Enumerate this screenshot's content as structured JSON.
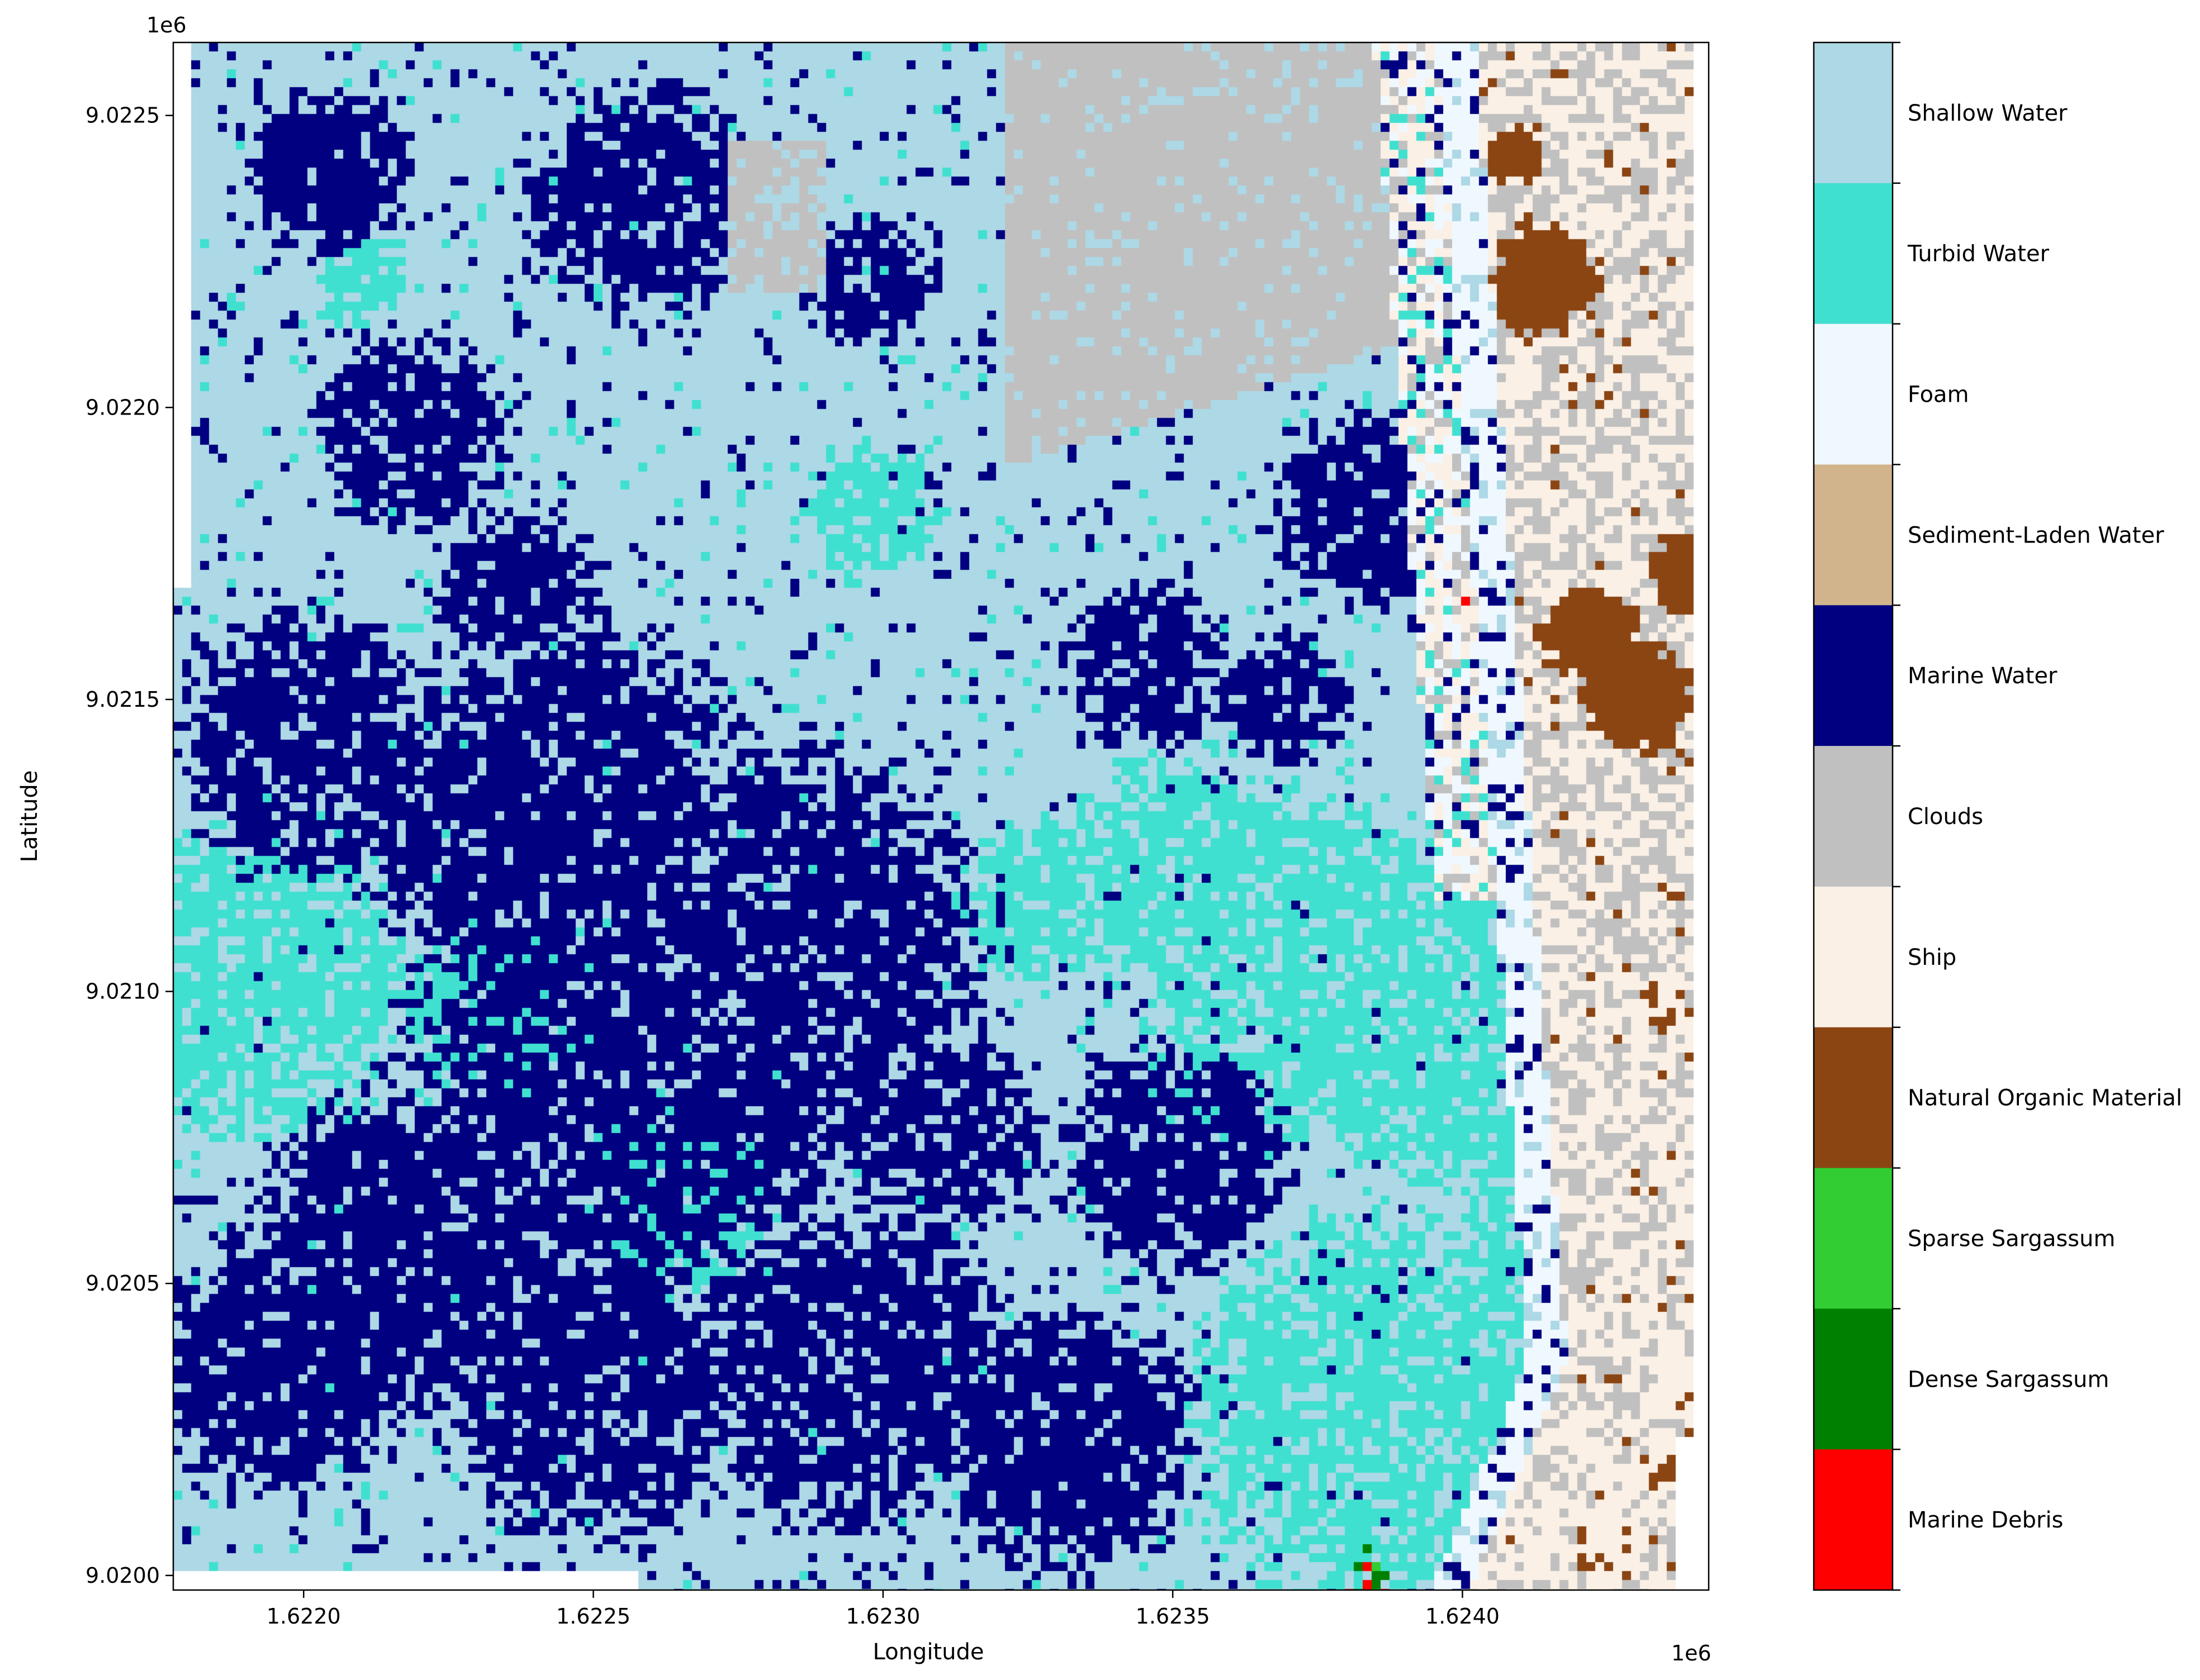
{
  "chart_data": {
    "type": "heatmap",
    "title": "",
    "xlabel": "Longitude",
    "ylabel": "Latitude",
    "x_offset_label": "1e6",
    "y_offset_label": "1e6",
    "xlim": [
      1.621775,
      1.624425
    ],
    "ylim": [
      9.019975,
      9.022625
    ],
    "x_ticks": [
      {
        "value": 1.622,
        "label": "1.6220"
      },
      {
        "value": 1.6225,
        "label": "1.6225"
      },
      {
        "value": 1.623,
        "label": "1.6230"
      },
      {
        "value": 1.6235,
        "label": "1.6235"
      },
      {
        "value": 1.624,
        "label": "1.6240"
      }
    ],
    "y_ticks": [
      {
        "value": 9.02,
        "label": "9.0200"
      },
      {
        "value": 9.0205,
        "label": "9.0205"
      },
      {
        "value": 9.021,
        "label": "9.0210"
      },
      {
        "value": 9.0215,
        "label": "9.0215"
      },
      {
        "value": 9.022,
        "label": "9.0220"
      },
      {
        "value": 9.0225,
        "label": "9.0225"
      }
    ],
    "classes": [
      {
        "name": "Shallow Water",
        "color": "#add8e6"
      },
      {
        "name": "Turbid Water",
        "color": "#40e0d0"
      },
      {
        "name": "Foam",
        "color": "#f0f8ff"
      },
      {
        "name": "Sediment-Laden Water",
        "color": "#d2b48c"
      },
      {
        "name": "Marine Water",
        "color": "#000080"
      },
      {
        "name": "Clouds",
        "color": "#c0c0c0"
      },
      {
        "name": "Ship",
        "color": "#faf0e6"
      },
      {
        "name": "Natural Organic Material",
        "color": "#8b4513"
      },
      {
        "name": "Sparse Sargassum",
        "color": "#32cd32"
      },
      {
        "name": "Dense Sargassum",
        "color": "#008000"
      },
      {
        "name": "Marine Debris",
        "color": "#ff0000"
      }
    ],
    "legend_placement": "right colorbar",
    "grid": false
  }
}
